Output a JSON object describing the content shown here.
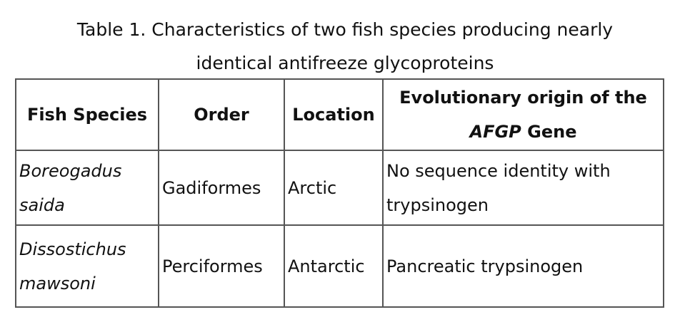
{
  "caption": {
    "line1": "Table 1. Characteristics of two fish species producing nearly",
    "line2": "identical antifreeze glycoproteins"
  },
  "table": {
    "headers": [
      "Fish Species",
      "Order",
      "Location"
    ],
    "header4": {
      "line1": "Evolutionary origin of the",
      "gene": "AFGP",
      "suffix": " Gene"
    },
    "rows": [
      {
        "species": "Boreogadus saida",
        "order": "Gadiformes",
        "location": "Arctic",
        "origin": "No sequence identity with trypsinogen"
      },
      {
        "species": "Dissostichus mawsoni",
        "order": "Perciformes",
        "location": "Antarctic",
        "origin": "Pancreatic trypsinogen"
      }
    ]
  }
}
